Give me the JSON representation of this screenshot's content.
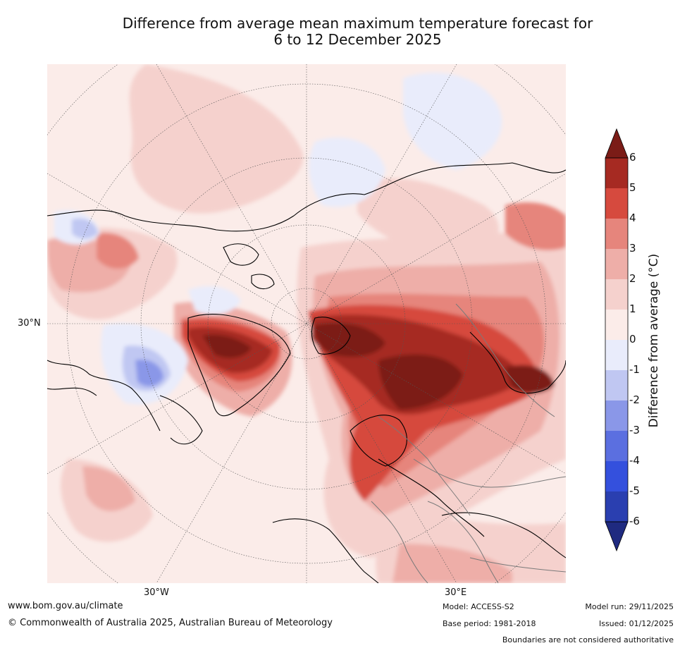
{
  "title": {
    "line1": "Difference from average mean maximum temperature forecast for",
    "line2": "6 to 12 December 2025"
  },
  "map": {
    "lat_label": "30°N",
    "lon_labels": [
      "30°W",
      "30°E"
    ]
  },
  "colorbar": {
    "title": "Difference from average (°C)",
    "levels": [
      "6",
      "5",
      "4",
      "3",
      "2",
      "1",
      "0",
      "-1",
      "-2",
      "-3",
      "-4",
      "-5",
      "-6"
    ],
    "colors": {
      "gt6": "#7b1c17",
      "5_6": "#a62a22",
      "4_5": "#d64a3e",
      "3_4": "#e6857c",
      "2_3": "#eeaea8",
      "1_2": "#f5d1cd",
      "0_1": "#fbece9",
      "m1_0": "#e9ecfb",
      "m2_m1": "#c0c7f2",
      "m3_m2": "#8a97e8",
      "m4_m3": "#5b6fe0",
      "m5_m4": "#3450dd",
      "m6_m5": "#2a3fb0",
      "lt_m6": "#1f2a80"
    }
  },
  "footer": {
    "url": "www.bom.gov.au/climate",
    "copyright": "© Commonwealth of Australia 2025, Australian Bureau of Meteorology",
    "model": "Model: ACCESS-S2",
    "base_period": "Base period: 1981-2018",
    "model_run": "Model run: 29/11/2025",
    "issued": "Issued: 01/12/2025",
    "disclaimer": "Boundaries are not considered authoritative"
  }
}
